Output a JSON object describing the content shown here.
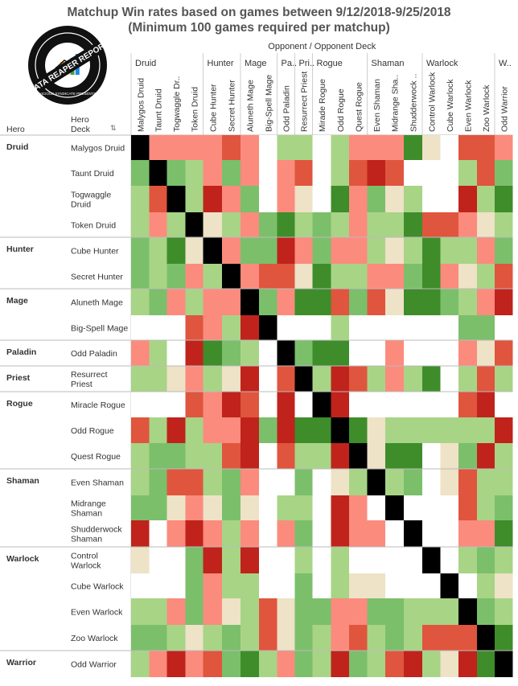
{
  "title_line1": "Matchup Win rates based on games between 9/12/2018-9/25/2018",
  "title_line2": "(Minimum 100 games required per matchup)",
  "chart_data": {
    "type": "heatmap",
    "header_opponent": "Opponent  /  Opponent Deck",
    "row_header_hero": "Hero",
    "row_header_deck": "Hero\nDeck",
    "sort_glyph": "⇅",
    "logo_text": "DATA REAPER REPORT",
    "logo_subtext": "VICIOUS SYNDICATE PRESENTS",
    "opponent_heroes": [
      {
        "label": "Druid",
        "span": 4
      },
      {
        "label": "Hunter",
        "span": 2
      },
      {
        "label": "Mage",
        "span": 2
      },
      {
        "label": "Pa..",
        "span": 1
      },
      {
        "label": "Pri..",
        "span": 1
      },
      {
        "label": "Rogue",
        "span": 3
      },
      {
        "label": "Shaman",
        "span": 3
      },
      {
        "label": "Warlock",
        "span": 4
      },
      {
        "label": "W..",
        "span": 1
      }
    ],
    "columns": [
      "Malygos Druid",
      "Taunt Druid",
      "Togwaggle Dr..",
      "Token Druid",
      "Cube Hunter",
      "Secret Hunter",
      "Aluneth Mage",
      "Big-Spell Mage",
      "Odd Paladin",
      "Resurrect Priest",
      "Mirade Rogue",
      "Odd Rogue",
      "Quest Rogue",
      "Even Shaman",
      "Midrange Sha..",
      "Shudderwock ..",
      "Control Warlock",
      "Cube Warlock",
      "Even Warlock",
      "Zoo Warlock",
      "Odd Warrior"
    ],
    "hero_groups": [
      {
        "label": "Druid",
        "rows": 4
      },
      {
        "label": "Hunter",
        "rows": 2
      },
      {
        "label": "Mage",
        "rows": 2
      },
      {
        "label": "Paladin",
        "rows": 1
      },
      {
        "label": "Priest",
        "rows": 1
      },
      {
        "label": "Rogue",
        "rows": 3
      },
      {
        "label": "Shaman",
        "rows": 3
      },
      {
        "label": "Warlock",
        "rows": 4
      },
      {
        "label": "Warrior",
        "rows": 1
      }
    ],
    "rows": [
      "Malygos Druid",
      "Taunt Druid",
      "Togwaggle\nDruid",
      "Token Druid",
      "Cube Hunter",
      "Secret Hunter",
      "Aluneth Mage",
      "Big-Spell Mage",
      "Odd Paladin",
      "Resurrect\nPriest",
      "Miracle Rogue",
      "Odd Rogue",
      "Quest Rogue",
      "Even Shaman",
      "Midrange\nShaman",
      "Shudderwock\nShaman",
      "Control\nWarlock",
      "Cube Warlock",
      "Even Warlock",
      "Zoo Warlock",
      "Odd Warrior"
    ],
    "color_scale": {
      "-3": "#c0231b",
      "-2": "#e0553d",
      "-1": "#fb8b7d",
      "0": "#eee2c7",
      "1": "#a8d486",
      "2": "#7bbf6b",
      "3": "#3e8d2a",
      "self": "#000000",
      "none": "#ffffff"
    },
    "cells": [
      [
        "X",
        -1,
        -1,
        -1,
        -1,
        -2,
        -1,
        null,
        1,
        1,
        null,
        1,
        -1,
        -1,
        -1,
        3,
        0,
        null,
        -2,
        -2,
        -1
      ],
      [
        2,
        "X",
        2,
        1,
        -1,
        2,
        -1,
        null,
        -1,
        -2,
        null,
        1,
        -2,
        -3,
        -2,
        null,
        null,
        null,
        1,
        -2,
        2
      ],
      [
        1,
        -2,
        "X",
        1,
        -3,
        -1,
        2,
        null,
        -1,
        0,
        null,
        3,
        -1,
        2,
        0,
        1,
        null,
        null,
        -3,
        1,
        3
      ],
      [
        1,
        -1,
        1,
        "X",
        0,
        1,
        -1,
        2,
        3,
        1,
        2,
        1,
        -1,
        1,
        1,
        3,
        -2,
        -2,
        -1,
        0,
        1
      ],
      [
        2,
        1,
        3,
        0,
        "X",
        -1,
        2,
        2,
        -3,
        -1,
        2,
        -1,
        -1,
        1,
        0,
        1,
        3,
        1,
        1,
        -1,
        2
      ],
      [
        2,
        1,
        2,
        -1,
        1,
        "X",
        -1,
        -2,
        -2,
        0,
        3,
        1,
        1,
        -1,
        -1,
        2,
        3,
        -1,
        0,
        1,
        -2
      ],
      [
        1,
        2,
        -1,
        1,
        -1,
        -1,
        "X",
        2,
        -1,
        3,
        3,
        -2,
        2,
        -2,
        0,
        3,
        3,
        2,
        1,
        -1,
        -3
      ],
      [
        null,
        null,
        null,
        -2,
        -1,
        1,
        -3,
        "X",
        null,
        null,
        null,
        1,
        null,
        null,
        null,
        null,
        null,
        null,
        2,
        2,
        null
      ],
      [
        -1,
        1,
        null,
        -3,
        3,
        2,
        1,
        null,
        "X",
        2,
        3,
        3,
        null,
        null,
        -1,
        null,
        null,
        null,
        -1,
        0,
        -2
      ],
      [
        1,
        1,
        0,
        -1,
        1,
        0,
        -3,
        null,
        -2,
        "X",
        1,
        -3,
        -2,
        1,
        -1,
        1,
        3,
        null,
        1,
        -2,
        1
      ],
      [
        null,
        null,
        null,
        -2,
        -1,
        -3,
        -2,
        null,
        -3,
        null,
        "X",
        -3,
        null,
        null,
        null,
        null,
        null,
        null,
        -2,
        -3,
        null
      ],
      [
        -2,
        1,
        -3,
        1,
        -1,
        -1,
        -3,
        2,
        -3,
        3,
        3,
        "X",
        3,
        0,
        1,
        1,
        1,
        1,
        1,
        1,
        -3
      ],
      [
        1,
        2,
        2,
        1,
        1,
        -2,
        -3,
        null,
        -2,
        1,
        1,
        -3,
        "X",
        0,
        3,
        3,
        null,
        0,
        2,
        -3,
        1
      ],
      [
        1,
        2,
        -2,
        -2,
        1,
        2,
        -1,
        null,
        null,
        2,
        null,
        0,
        1,
        "X",
        1,
        2,
        null,
        0,
        -2,
        1,
        1
      ],
      [
        2,
        2,
        0,
        -1,
        0,
        2,
        0,
        null,
        1,
        1,
        null,
        -3,
        -1,
        null,
        "X",
        null,
        null,
        null,
        -2,
        1,
        2
      ],
      [
        -3,
        null,
        -1,
        -3,
        -1,
        1,
        -1,
        null,
        -1,
        2,
        null,
        -3,
        -1,
        -1,
        null,
        "X",
        null,
        null,
        -1,
        -1,
        3
      ],
      [
        0,
        null,
        null,
        2,
        -3,
        1,
        -3,
        null,
        null,
        1,
        null,
        1,
        null,
        null,
        null,
        null,
        "X",
        null,
        1,
        2,
        1
      ],
      [
        null,
        null,
        null,
        2,
        -1,
        1,
        1,
        null,
        null,
        2,
        null,
        1,
        0,
        0,
        null,
        null,
        null,
        "X",
        null,
        1,
        0
      ],
      [
        1,
        1,
        -1,
        2,
        -1,
        0,
        1,
        -2,
        0,
        2,
        2,
        -1,
        -1,
        2,
        2,
        1,
        1,
        1,
        "X",
        2,
        1
      ],
      [
        2,
        2,
        1,
        0,
        1,
        2,
        1,
        -2,
        0,
        2,
        1,
        -1,
        -2,
        1,
        2,
        1,
        -2,
        -2,
        -2,
        "X",
        3
      ],
      [
        1,
        -1,
        -3,
        -1,
        -2,
        2,
        3,
        1,
        -1,
        2,
        1,
        -3,
        2,
        1,
        -2,
        -3,
        1,
        0,
        -3,
        3,
        "X"
      ]
    ]
  }
}
